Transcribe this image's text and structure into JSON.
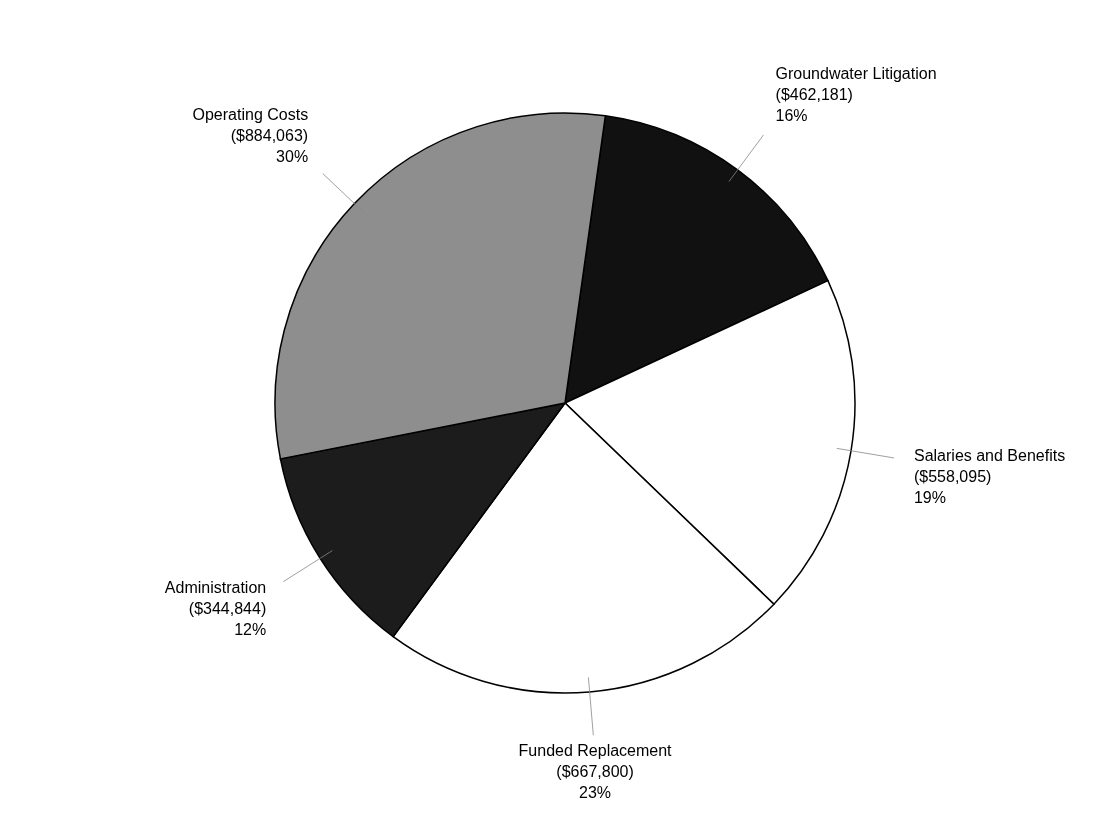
{
  "chart_data": {
    "type": "pie",
    "categories": [
      "Groundwater Litigation",
      "Salaries and Benefits",
      "Funded Replacement",
      "Administration",
      "Operating Costs"
    ],
    "values": [
      462181,
      558095,
      667800,
      344844,
      884063
    ],
    "colors": [
      "#111111",
      "#ffffff",
      "#ffffff",
      "#1c1c1c",
      "#8e8e8e"
    ],
    "value_labels": [
      "($462,181)\n16%",
      "($558,095)\n19%",
      "($667,800)\n23%",
      "($344,844)\n12%",
      "($884,063)\n30%"
    ]
  }
}
